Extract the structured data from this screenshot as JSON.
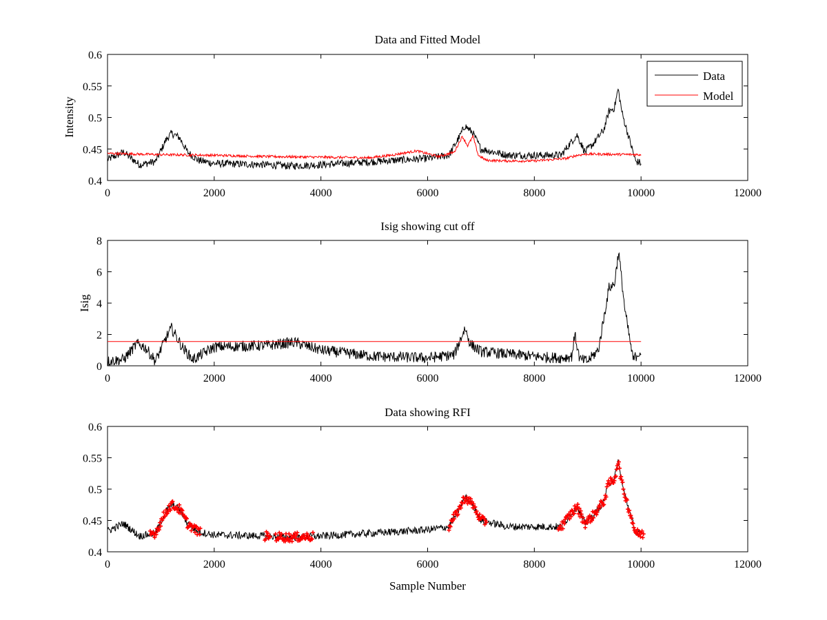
{
  "figure": {
    "background": "#ffffff"
  },
  "colors": {
    "data": "#000000",
    "model": "#ff0000",
    "cutoff": "#ff0000",
    "rfi": "#ff0000"
  },
  "chart_data": [
    {
      "type": "line",
      "title": "Data and Fitted Model",
      "xlabel": "",
      "ylabel": "Intensity",
      "xlim": [
        0,
        12000
      ],
      "ylim": [
        0.4,
        0.6
      ],
      "xticks": [
        0,
        2000,
        4000,
        6000,
        8000,
        10000,
        12000
      ],
      "yticks": [
        0.4,
        0.45,
        0.5,
        0.55,
        0.6
      ],
      "ytick_labels": [
        "0.4",
        "0.45",
        "0.5",
        "0.55",
        "0.6"
      ],
      "legend": {
        "position": "top-right",
        "entries": [
          "Data",
          "Model"
        ]
      },
      "series": [
        {
          "name": "Data",
          "color": "#000000",
          "noise": 0.006,
          "x": [
            0,
            300,
            600,
            900,
            1100,
            1200,
            1350,
            1500,
            1700,
            2000,
            3000,
            3400,
            4000,
            5000,
            6000,
            6400,
            6600,
            6700,
            6850,
            7000,
            7500,
            8000,
            8500,
            8700,
            8800,
            8950,
            9100,
            9300,
            9400,
            9500,
            9570,
            9650,
            9800,
            9900,
            10000
          ],
          "y": [
            0.433,
            0.445,
            0.425,
            0.43,
            0.465,
            0.475,
            0.468,
            0.445,
            0.432,
            0.427,
            0.425,
            0.423,
            0.425,
            0.43,
            0.435,
            0.44,
            0.47,
            0.487,
            0.475,
            0.45,
            0.44,
            0.44,
            0.44,
            0.462,
            0.472,
            0.445,
            0.458,
            0.48,
            0.51,
            0.515,
            0.545,
            0.505,
            0.46,
            0.43,
            0.428
          ]
        },
        {
          "name": "Model",
          "color": "#ff0000",
          "noise": 0.002,
          "x": [
            0,
            1000,
            2000,
            3000,
            4000,
            4900,
            5300,
            5800,
            6200,
            6500,
            6650,
            6750,
            6850,
            6950,
            7100,
            7500,
            8000,
            8300,
            8600,
            8800,
            9000,
            10000
          ],
          "y": [
            0.443,
            0.441,
            0.44,
            0.438,
            0.437,
            0.436,
            0.44,
            0.447,
            0.438,
            0.445,
            0.47,
            0.455,
            0.47,
            0.44,
            0.432,
            0.431,
            0.431,
            0.433,
            0.435,
            0.44,
            0.442,
            0.441
          ]
        }
      ]
    },
    {
      "type": "line",
      "title": "Isig showing cut off",
      "xlabel": "",
      "ylabel": "Isig",
      "xlim": [
        0,
        12000
      ],
      "ylim": [
        0,
        8
      ],
      "xticks": [
        0,
        2000,
        4000,
        6000,
        8000,
        10000,
        12000
      ],
      "yticks": [
        0,
        2,
        4,
        6,
        8
      ],
      "ytick_labels": [
        "0",
        "2",
        "4",
        "6",
        "8"
      ],
      "series": [
        {
          "color": "#000000",
          "noise": 0.35,
          "x": [
            0,
            300,
            550,
            700,
            900,
            1100,
            1200,
            1400,
            1600,
            2000,
            3000,
            3500,
            4000,
            5000,
            6000,
            6500,
            6700,
            6800,
            7000,
            8000,
            8500,
            8700,
            8760,
            8850,
            9000,
            9200,
            9400,
            9500,
            9580,
            9700,
            9850,
            9950,
            10000
          ],
          "y": [
            0.3,
            0.4,
            1.4,
            1.2,
            0.3,
            1.8,
            2.4,
            1.2,
            0.4,
            1.2,
            1.3,
            1.5,
            1.0,
            0.6,
            0.5,
            0.7,
            2.4,
            1.4,
            0.9,
            0.6,
            0.5,
            0.6,
            2.0,
            0.4,
            0.3,
            1.0,
            5.0,
            5.2,
            7.3,
            3.5,
            0.4,
            0.8,
            0.9
          ]
        },
        {
          "color": "#ff0000",
          "noise": 0,
          "x": [
            0,
            10000
          ],
          "y": [
            1.55,
            1.55
          ]
        }
      ]
    },
    {
      "type": "scatter",
      "title": "Data showing RFI",
      "xlabel": "Sample Number",
      "ylabel": "",
      "xlim": [
        0,
        12000
      ],
      "ylim": [
        0.4,
        0.6
      ],
      "xticks": [
        0,
        2000,
        4000,
        6000,
        8000,
        10000,
        12000
      ],
      "yticks": [
        0.4,
        0.45,
        0.5,
        0.55,
        0.6
      ],
      "ytick_labels": [
        "0.4",
        "0.45",
        "0.5",
        "0.55",
        "0.6"
      ],
      "series": [
        {
          "color": "#000000",
          "noise": 0.006,
          "x": [
            0,
            300,
            600,
            900,
            1100,
            1200,
            1350,
            1500,
            1700,
            2000,
            3000,
            3400,
            4000,
            5000,
            6000,
            6400,
            6600,
            6700,
            6850,
            7000,
            7500,
            8000,
            8500,
            8700,
            8800,
            8950,
            9100,
            9300,
            9400,
            9500,
            9570,
            9650,
            9800,
            9900,
            10000
          ],
          "y": [
            0.433,
            0.445,
            0.425,
            0.43,
            0.465,
            0.475,
            0.468,
            0.445,
            0.432,
            0.427,
            0.425,
            0.423,
            0.425,
            0.43,
            0.435,
            0.44,
            0.47,
            0.487,
            0.475,
            0.45,
            0.44,
            0.44,
            0.44,
            0.462,
            0.472,
            0.445,
            0.458,
            0.48,
            0.51,
            0.515,
            0.545,
            0.505,
            0.46,
            0.43,
            0.428
          ]
        },
        {
          "color": "#ff0000",
          "marker": "+",
          "flagged_ranges": [
            [
              800,
              1750
            ],
            [
              2950,
              3050
            ],
            [
              3150,
              3850
            ],
            [
              6400,
              7100
            ],
            [
              8450,
              10050
            ]
          ]
        }
      ]
    }
  ]
}
